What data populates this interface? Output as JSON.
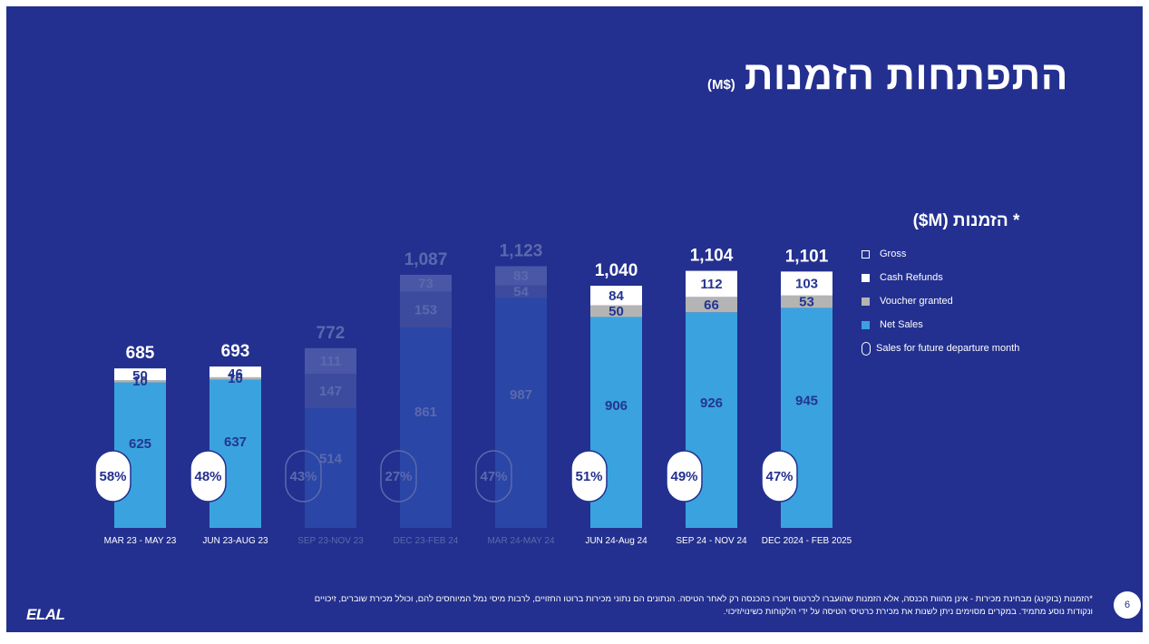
{
  "title": "התפתחות הזמנות",
  "title_unit": "($M)",
  "chart_data": {
    "type": "bar",
    "stacked": true,
    "categories": [
      "MAR 23 - MAY 23",
      "JUN 23-AUG 23",
      "SEP 23-NOV 23",
      "DEC 23-FEB 24",
      "MAR 24-MAY 24",
      "JUN 24-Aug 24",
      "SEP 24 - NOV 24",
      "DEC 2024 - FEB 2025"
    ],
    "highlighted": [
      true,
      true,
      false,
      false,
      false,
      true,
      true,
      true
    ],
    "series": [
      {
        "name": "Net Sales",
        "values": [
          625,
          637,
          514,
          861,
          987,
          906,
          926,
          945
        ],
        "color": "#3aa3df"
      },
      {
        "name": "Voucher granted",
        "values": [
          10,
          10,
          147,
          153,
          54,
          50,
          66,
          53
        ],
        "color": "#b4b4b4"
      },
      {
        "name": "Cash Refunds",
        "values": [
          50,
          46,
          111,
          73,
          83,
          84,
          112,
          103
        ],
        "color": "#ffffff"
      }
    ],
    "totals": [
      "685",
      "693",
      "772",
      "1,087",
      "1,123",
      "1,040",
      "1,104",
      "1,101"
    ],
    "future_departure_share": [
      "58%",
      "48%",
      "43%",
      "27%",
      "47%",
      "51%",
      "49%",
      "47%"
    ],
    "legend": {
      "title": "* הזמנות (M$)",
      "position": "right",
      "items": [
        {
          "label": "Gross",
          "marker": "square-outline"
        },
        {
          "label": "Cash Refunds",
          "marker": "square-white"
        },
        {
          "label": "Voucher granted",
          "marker": "square-grey"
        },
        {
          "label": "Net Sales",
          "marker": "square-blue"
        },
        {
          "label": "Sales for future departure month",
          "marker": "pill"
        }
      ]
    },
    "grid": false
  },
  "footnote": {
    "line1": "*הזמנות (בוקינג) מבחינת מכירות - אינן מהוות הכנסה, אלא הזמנות שהועברו לכרטוס ויוכרו כהכנסה רק לאחר הטיסה. הנתונים הם נתוני מכירות ברוטו החזויים, לרבות מיסי נמל המיוחסים להם, וכולל מכירת שוברים, זיכויים",
    "line2": "ונקודות נוסע מתמיד. במקרים מסוימים ניתן לשנות את מכירת כרטיסי הטיסה על ידי הלקוחות כשינוי/זיכוי."
  },
  "page_number": "6",
  "logo_text": "ELAL",
  "colors": {
    "background": "#23308f",
    "net_sales": "#3aa3df",
    "voucher": "#b4b4b4",
    "refunds": "#ffffff",
    "label_dark": "#233592",
    "dimmed_bar": "#2a46a6",
    "dimmed_text": "#5b69ae"
  }
}
